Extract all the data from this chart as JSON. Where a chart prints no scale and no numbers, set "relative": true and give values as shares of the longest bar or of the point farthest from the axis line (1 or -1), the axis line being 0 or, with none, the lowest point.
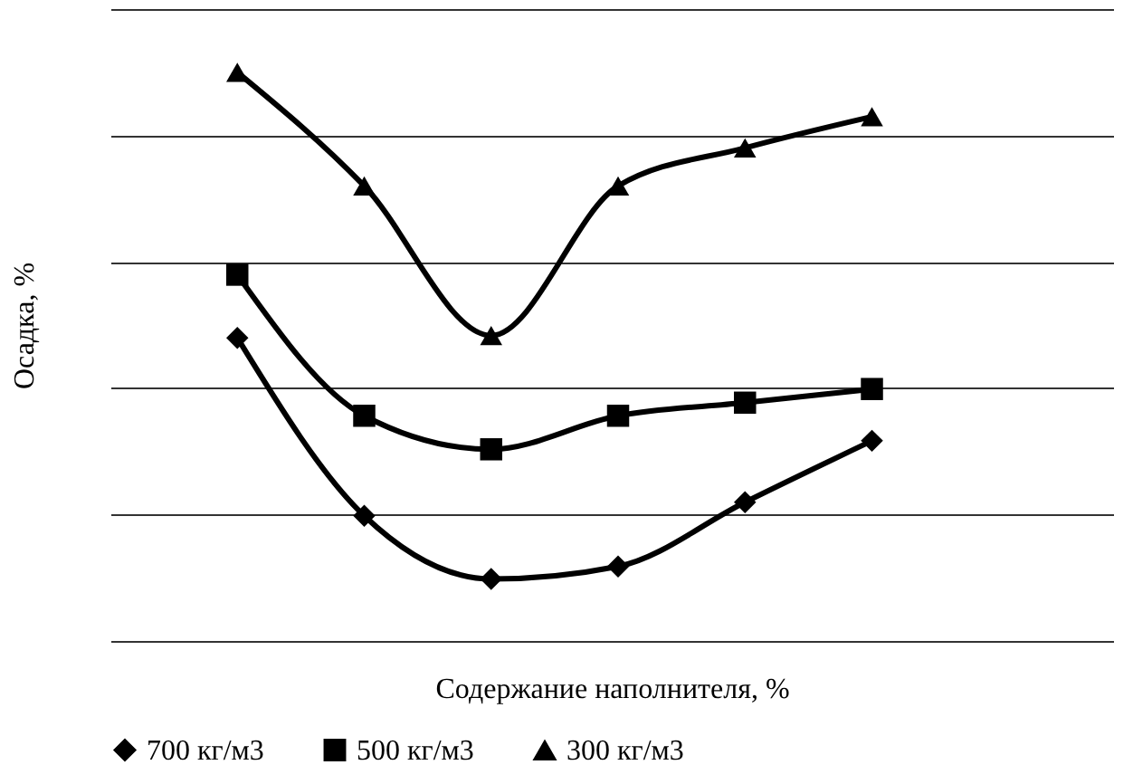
{
  "chart_data": {
    "type": "line",
    "relative": true,
    "xlabel": "Содержание наполнителя, %",
    "ylabel": "Осадка, %",
    "categories": [
      null,
      null,
      null,
      null,
      null,
      null
    ],
    "series": [
      {
        "name": "700 кг/м3",
        "color": "#000000",
        "marker": "diamond",
        "values": [
          0.533,
          0.22,
          0.109,
          0.131,
          0.244,
          0.352
        ]
      },
      {
        "name": "500 кг/м3",
        "color": "#000000",
        "marker": "square",
        "values": [
          0.644,
          0.396,
          0.337,
          0.396,
          0.419,
          0.443
        ]
      },
      {
        "name": "300 кг/м3",
        "color": "#000000",
        "marker": "triangle",
        "values": [
          1,
          0.8,
          0.537,
          0.8,
          0.867,
          0.922
        ]
      }
    ],
    "grid": "y",
    "legend": "bottom",
    "line_style": "solid",
    "tick_labels": false
  }
}
